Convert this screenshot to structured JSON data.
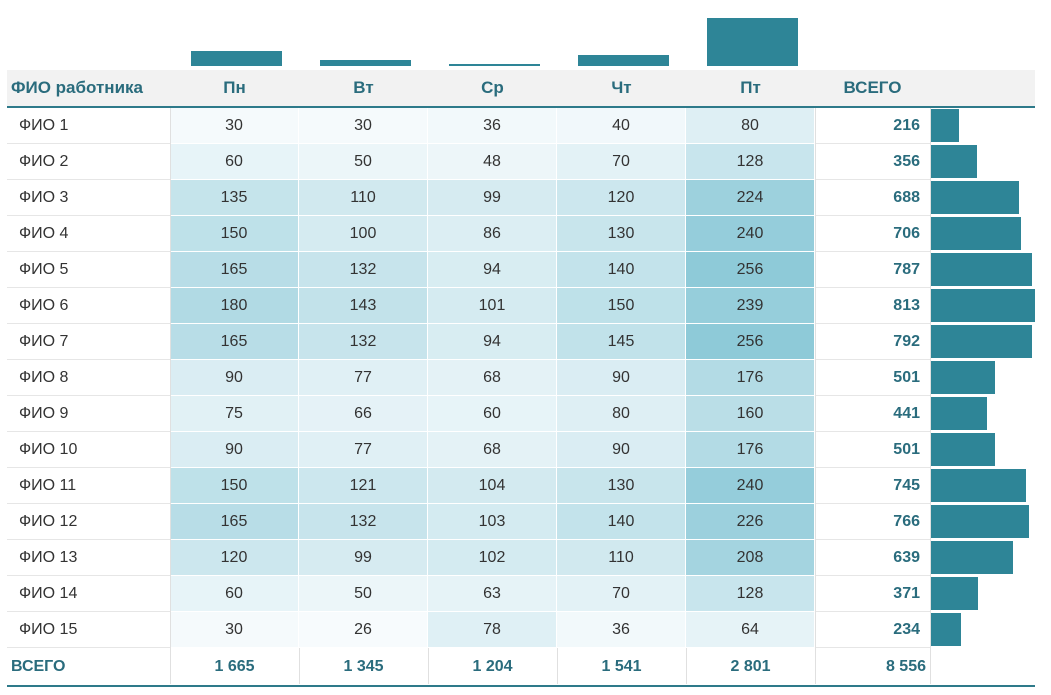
{
  "colors": {
    "accent": "#2e8597",
    "header_text": "#2a6c7d",
    "heat_low": "#f4f9fc",
    "heat_high": "#8ecad8"
  },
  "chart_data": {
    "type": "table",
    "name_header": "ФИО работника",
    "days": [
      "Пн",
      "Вт",
      "Ср",
      "Чт",
      "Пт"
    ],
    "total_header": "ВСЕГО",
    "rows": [
      {
        "name": "ФИО 1",
        "values": [
          30,
          30,
          36,
          40,
          80
        ],
        "total": "216"
      },
      {
        "name": "ФИО 2",
        "values": [
          60,
          50,
          48,
          70,
          128
        ],
        "total": "356"
      },
      {
        "name": "ФИО 3",
        "values": [
          135,
          110,
          99,
          120,
          224
        ],
        "total": "688"
      },
      {
        "name": "ФИО 4",
        "values": [
          150,
          100,
          86,
          130,
          240
        ],
        "total": "706"
      },
      {
        "name": "ФИО 5",
        "values": [
          165,
          132,
          94,
          140,
          256
        ],
        "total": "787"
      },
      {
        "name": "ФИО 6",
        "values": [
          180,
          143,
          101,
          150,
          239
        ],
        "total": "813"
      },
      {
        "name": "ФИО 7",
        "values": [
          165,
          132,
          94,
          145,
          256
        ],
        "total": "792"
      },
      {
        "name": "ФИО 8",
        "values": [
          90,
          77,
          68,
          90,
          176
        ],
        "total": "501"
      },
      {
        "name": "ФИО 9",
        "values": [
          75,
          66,
          60,
          80,
          160
        ],
        "total": "441"
      },
      {
        "name": "ФИО 10",
        "values": [
          90,
          77,
          68,
          90,
          176
        ],
        "total": "501"
      },
      {
        "name": "ФИО 11",
        "values": [
          150,
          121,
          104,
          130,
          240
        ],
        "total": "745"
      },
      {
        "name": "ФИО 12",
        "values": [
          165,
          132,
          103,
          140,
          226
        ],
        "total": "766"
      },
      {
        "name": "ФИО 13",
        "values": [
          120,
          99,
          102,
          110,
          208
        ],
        "total": "639"
      },
      {
        "name": "ФИО 14",
        "values": [
          60,
          50,
          63,
          70,
          128
        ],
        "total": "371"
      },
      {
        "name": "ФИО 15",
        "values": [
          30,
          26,
          78,
          36,
          64
        ],
        "total": "234"
      }
    ],
    "footer_label": "ВСЕГО",
    "day_totals": [
      "1 665",
      "1 345",
      "1 204",
      "1 541",
      "2 801"
    ],
    "grand_total": "8 556"
  }
}
